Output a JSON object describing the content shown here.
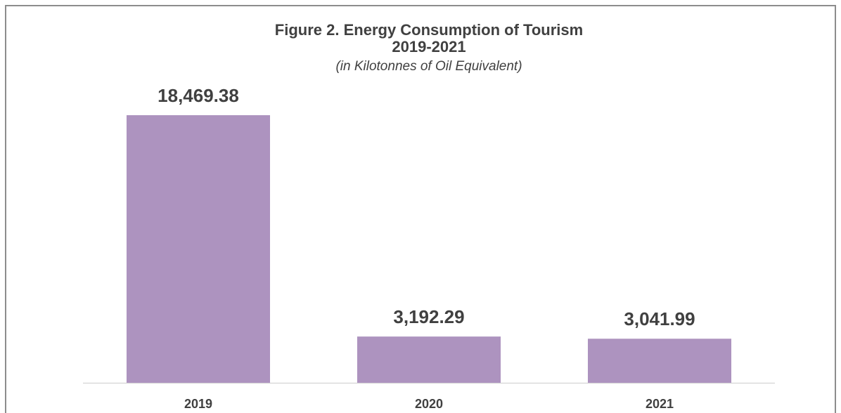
{
  "chart_data": {
    "type": "bar",
    "title": [
      "Figure 2. Energy Consumption of Tourism",
      "2019-2021"
    ],
    "subtitle": "(in Kilotonnes of Oil Equivalent)",
    "categories": [
      "2019",
      "2020",
      "2021"
    ],
    "values": [
      18469.38,
      3192.29,
      3041.99
    ],
    "value_labels": [
      "18,469.38",
      "3,192.29",
      "3,041.99"
    ],
    "color": "#ad93bf"
  }
}
